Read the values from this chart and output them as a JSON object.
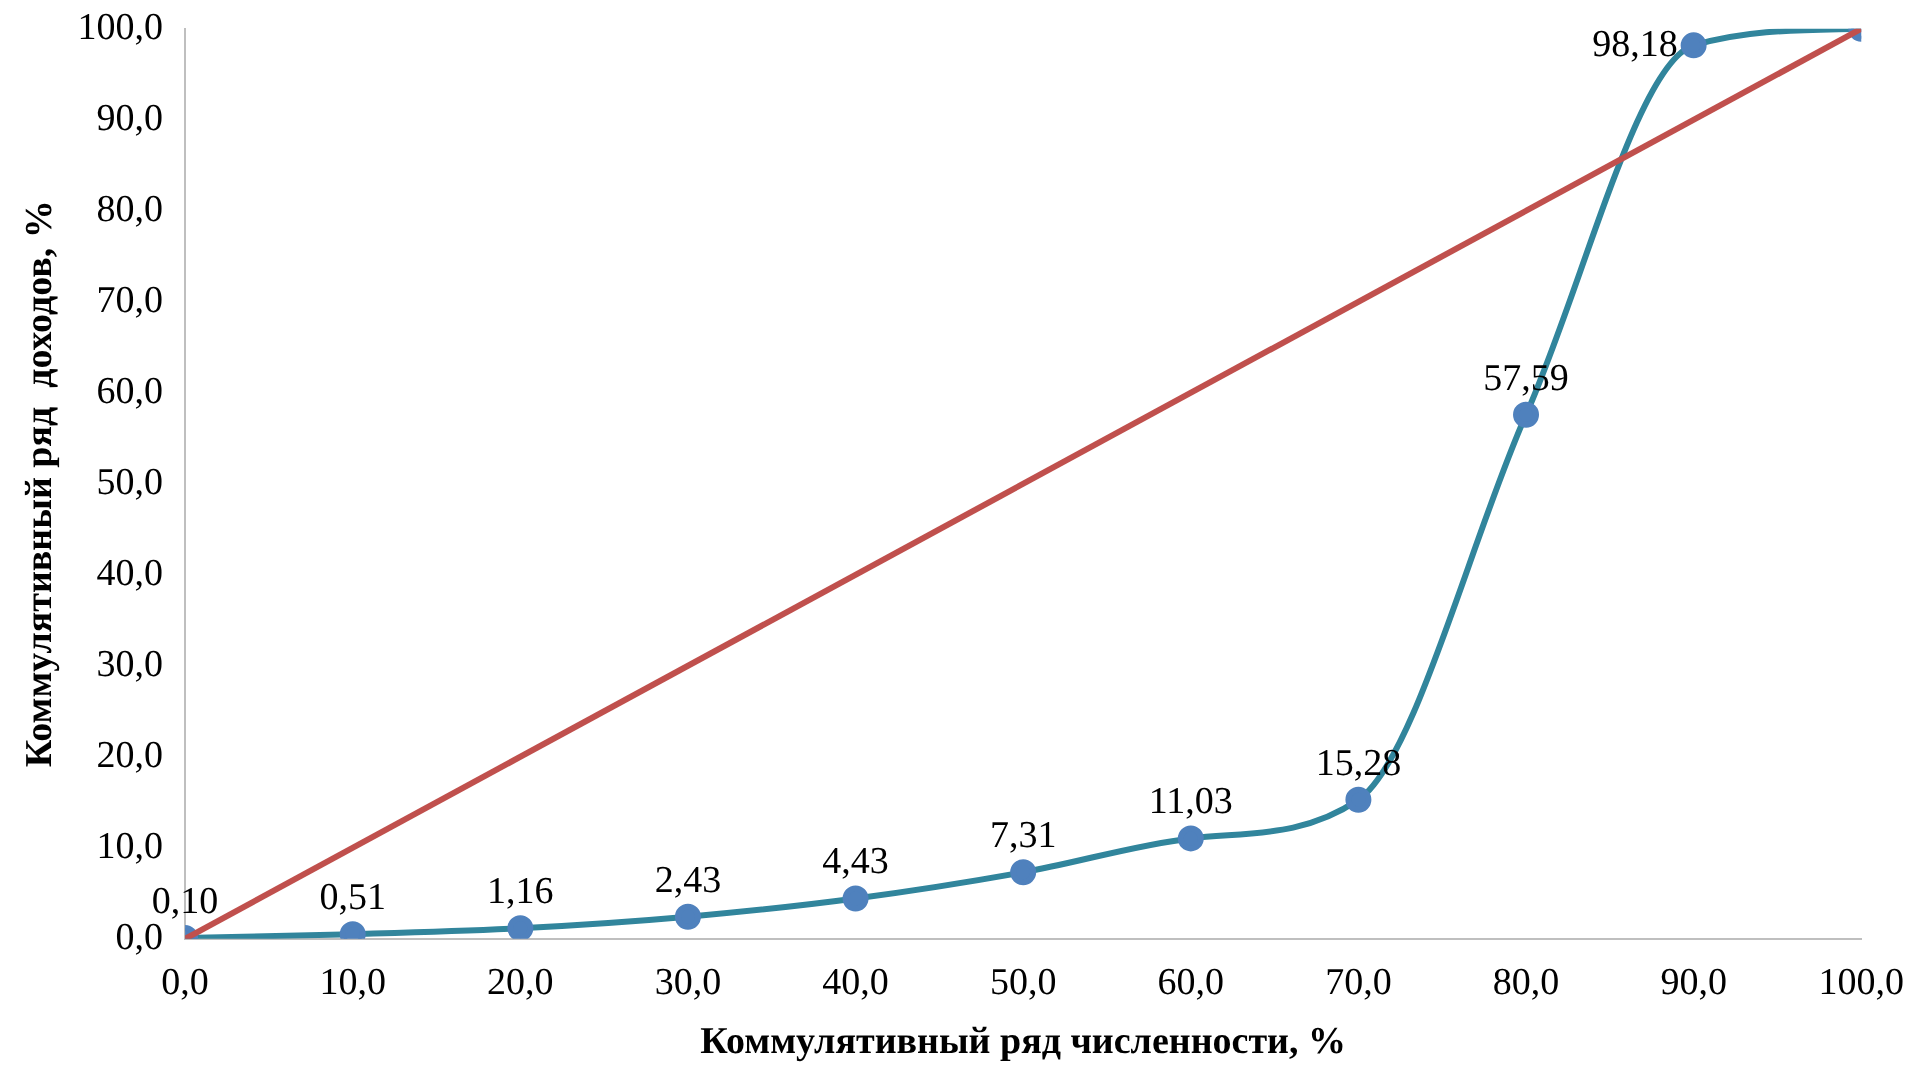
{
  "chart_data": {
    "type": "line",
    "xlabel": "Коммулятивный ряд численности, %",
    "ylabel": "Коммулятивный ряд  доходов, %",
    "xlim": [
      0,
      100
    ],
    "ylim": [
      0,
      100
    ],
    "xticks": [
      {
        "value": 0,
        "label": "0,0"
      },
      {
        "value": 10,
        "label": "10,0"
      },
      {
        "value": 20,
        "label": "20,0"
      },
      {
        "value": 30,
        "label": "30,0"
      },
      {
        "value": 40,
        "label": "40,0"
      },
      {
        "value": 50,
        "label": "50,0"
      },
      {
        "value": 60,
        "label": "60,0"
      },
      {
        "value": 70,
        "label": "70,0"
      },
      {
        "value": 80,
        "label": "80,0"
      },
      {
        "value": 90,
        "label": "90,0"
      },
      {
        "value": 100,
        "label": "100,0"
      }
    ],
    "yticks": [
      {
        "value": 0,
        "label": "0,0"
      },
      {
        "value": 10,
        "label": "10,0"
      },
      {
        "value": 20,
        "label": "20,0"
      },
      {
        "value": 30,
        "label": "30,0"
      },
      {
        "value": 40,
        "label": "40,0"
      },
      {
        "value": 50,
        "label": "50,0"
      },
      {
        "value": 60,
        "label": "60,0"
      },
      {
        "value": 70,
        "label": "70,0"
      },
      {
        "value": 80,
        "label": "80,0"
      },
      {
        "value": 90,
        "label": "90,0"
      },
      {
        "value": 100,
        "label": "100,0"
      }
    ],
    "grid": false,
    "legend": false,
    "series": [
      {
        "color": "#31859c",
        "marker": "circle",
        "x": [
          0,
          10,
          20,
          30,
          40,
          50,
          60,
          70,
          80,
          90,
          100
        ],
        "values": [
          0.1,
          0.51,
          1.16,
          2.43,
          4.43,
          7.31,
          11.03,
          15.28,
          57.59,
          98.18,
          100
        ],
        "value_labels": [
          "0,10",
          "0,51",
          "1,16",
          "2,43",
          "4,43",
          "7,31",
          "11,03",
          "15,28",
          "57,59",
          "98,18",
          null
        ]
      },
      {
        "color": "#c0504d",
        "marker": "none",
        "x": [
          0,
          100
        ],
        "values": [
          0,
          100
        ]
      }
    ]
  }
}
